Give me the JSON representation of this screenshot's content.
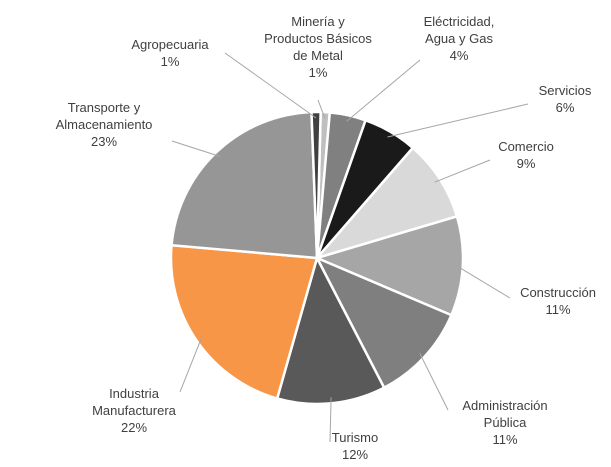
{
  "chart_data": {
    "type": "pie",
    "title": "",
    "legend": "none",
    "slices": [
      {
        "label": "Minería y Productos Básicos de Metal",
        "value": 1,
        "display": "1%",
        "color": "#bfbfbf"
      },
      {
        "label": "Eléctricidad, Agua y Gas",
        "value": 4,
        "display": "4%",
        "color": "#808080"
      },
      {
        "label": "Servicios",
        "value": 6,
        "display": "6%",
        "color": "#1a1a1a"
      },
      {
        "label": "Comercio",
        "value": 9,
        "display": "9%",
        "color": "#d9d9d9"
      },
      {
        "label": "Construcción",
        "value": 11,
        "display": "11%",
        "color": "#a6a6a6"
      },
      {
        "label": "Administración Pública",
        "value": 11,
        "display": "11%",
        "color": "#7f7f7f"
      },
      {
        "label": "Turismo",
        "value": 12,
        "display": "12%",
        "color": "#595959"
      },
      {
        "label": "Industria Manufacturera",
        "value": 22,
        "display": "22%",
        "color": "#f79646"
      },
      {
        "label": "Transporte y Almacenamiento",
        "value": 23,
        "display": "23%",
        "color": "#969696"
      },
      {
        "label": "Agropecuaria",
        "value": 1,
        "display": "1%",
        "color": "#404040"
      }
    ]
  }
}
